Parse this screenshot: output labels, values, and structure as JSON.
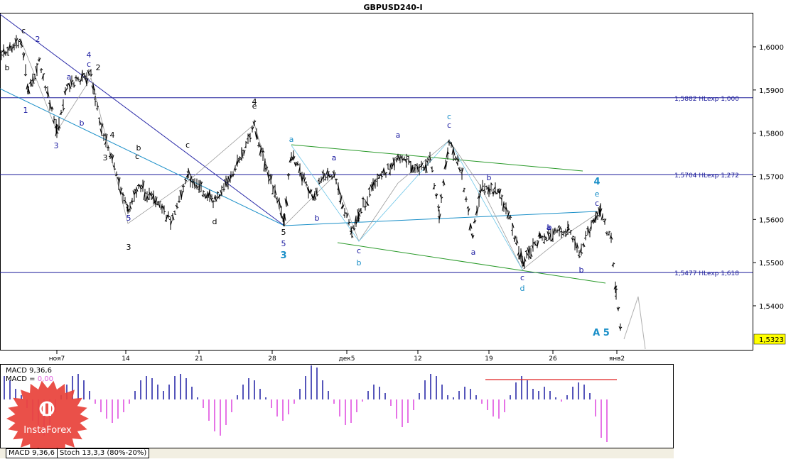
{
  "title": "GBPUSD240-I",
  "current_price": "1,5323",
  "chart_data": {
    "type": "candlestick",
    "symbol": "GBPUSD240-I",
    "ylim": [
      1.53,
      1.606
    ],
    "y_ticks": [
      "1,6000",
      "1,5900",
      "1,5800",
      "1,5700",
      "1,5600",
      "1,5500",
      "1,5400"
    ],
    "x_ticks": [
      "ноя7",
      "14",
      "21",
      "28",
      "дек5",
      "12",
      "19",
      "26",
      "янв2"
    ],
    "levels": [
      {
        "label": "1,5882 HLexp 1,000",
        "value": 1.5882
      },
      {
        "label": "1,5704 HLexp 1,272",
        "value": 1.5704
      },
      {
        "label": "1,5477 HLexp 1,618",
        "value": 1.5477
      }
    ],
    "wave_labels": [
      {
        "text": "b",
        "color": "#000000"
      },
      {
        "text": "c",
        "color": "#000000"
      },
      {
        "text": "2",
        "color": "#1a1aa0"
      },
      {
        "text": "1",
        "color": "#1a1aa0"
      },
      {
        "text": "3",
        "color": "#1a1aa0"
      },
      {
        "text": "4",
        "color": "#1a1aa0"
      },
      {
        "text": "c",
        "color": "#1a1aa0"
      },
      {
        "text": "a",
        "color": "#1a1aa0"
      },
      {
        "text": "b",
        "color": "#1a1aa0"
      },
      {
        "text": "2",
        "color": "#000000"
      },
      {
        "text": "1",
        "color": "#000000"
      },
      {
        "text": "4",
        "color": "#000000"
      },
      {
        "text": "3",
        "color": "#000000"
      },
      {
        "text": "5",
        "color": "#1a1aa0"
      },
      {
        "text": "3",
        "color": "#000000"
      },
      {
        "text": "c",
        "color": "#000000"
      },
      {
        "text": "b",
        "color": "#000000"
      },
      {
        "text": "c",
        "color": "#000000"
      },
      {
        "text": "d",
        "color": "#000000"
      },
      {
        "text": "4",
        "color": "#000000"
      },
      {
        "text": "e",
        "color": "#000000"
      },
      {
        "text": "5",
        "color": "#000000"
      },
      {
        "text": "5",
        "color": "#1a1aa0"
      },
      {
        "text": "3",
        "color": "#1a8fc8"
      },
      {
        "text": "a",
        "color": "#1a8fc8"
      },
      {
        "text": "b",
        "color": "#1a1aa0"
      },
      {
        "text": "a",
        "color": "#1a1aa0"
      },
      {
        "text": "c",
        "color": "#1a1aa0"
      },
      {
        "text": "b",
        "color": "#1a8fc8"
      },
      {
        "text": "a",
        "color": "#1a1aa0"
      },
      {
        "text": "c",
        "color": "#1a8fc8"
      },
      {
        "text": "c",
        "color": "#1a1aa0"
      },
      {
        "text": "b",
        "color": "#1a1aa0"
      },
      {
        "text": "a",
        "color": "#1a1aa0"
      },
      {
        "text": "b",
        "color": "#1a1aa0"
      },
      {
        "text": "c",
        "color": "#1a1aa0"
      },
      {
        "text": "d",
        "color": "#1a8fc8"
      },
      {
        "text": "a",
        "color": "#1a1aa0"
      },
      {
        "text": "b",
        "color": "#1a1aa0"
      },
      {
        "text": "4",
        "color": "#1a8fc8"
      },
      {
        "text": "e",
        "color": "#1a8fc8"
      },
      {
        "text": "c",
        "color": "#1a1aa0"
      },
      {
        "text": "A 5",
        "color": "#1a8fc8"
      }
    ],
    "indicator": {
      "name": "MACD 9,36,6",
      "label_line1": "MACD 9,36,6",
      "label_line2_prefix": "MACD = ",
      "label_line2_value": "0,00",
      "histogram": [
        0.55,
        0.45,
        0.25,
        0.1,
        -0.2,
        -0.5,
        -0.8,
        -0.85,
        -0.6,
        -0.3,
        0.1,
        0.35,
        0.55,
        0.6,
        0.45,
        0.2,
        -0.1,
        -0.3,
        -0.45,
        -0.55,
        -0.45,
        -0.3,
        -0.1,
        0.2,
        0.45,
        0.55,
        0.5,
        0.35,
        0.2,
        0.35,
        0.55,
        0.6,
        0.5,
        0.3,
        0.05,
        -0.2,
        -0.5,
        -0.75,
        -0.85,
        -0.6,
        -0.3,
        0.1,
        0.35,
        0.5,
        0.45,
        0.25,
        0.05,
        -0.2,
        -0.4,
        -0.5,
        -0.35,
        -0.1,
        0.25,
        0.55,
        0.8,
        0.75,
        0.45,
        0.2,
        -0.1,
        -0.4,
        -0.6,
        -0.55,
        -0.3,
        -0.05,
        0.2,
        0.35,
        0.3,
        0.15,
        -0.15,
        -0.45,
        -0.65,
        -0.55,
        -0.25,
        0.15,
        0.45,
        0.6,
        0.55,
        0.35,
        0.1,
        0.05,
        0.2,
        0.3,
        0.25,
        0.1,
        -0.1,
        -0.25,
        -0.4,
        -0.45,
        -0.3,
        0.1,
        0.4,
        0.55,
        0.45,
        0.25,
        0.2,
        0.3,
        0.2,
        0.05,
        -0.05,
        0.1,
        0.3,
        0.4,
        0.35,
        0.15,
        -0.4,
        -0.9,
        -1.0
      ]
    }
  },
  "tabs": [
    {
      "label": "MACD 9,36,6"
    },
    {
      "label": "Stoch 13,3,3 (80%-20%)"
    }
  ],
  "logo": {
    "text": "InstaForex",
    "color": "#e8413a"
  }
}
